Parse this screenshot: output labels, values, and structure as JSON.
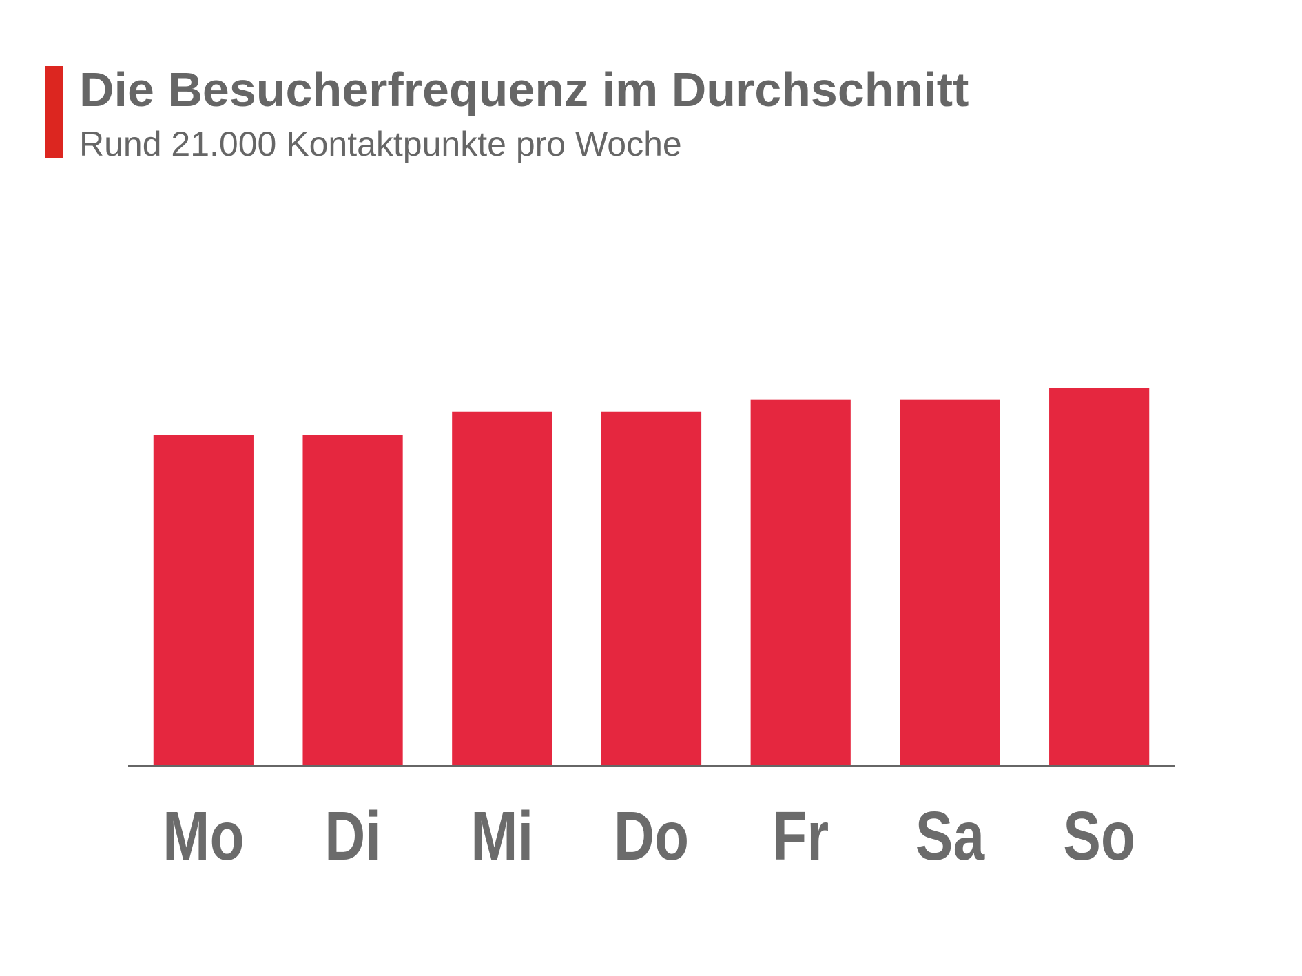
{
  "chart_data": {
    "type": "bar",
    "title": "Die Besucherfrequenz im Durchschnitt",
    "subtitle": "Rund 21.000 Kontaktpunkte pro Woche",
    "categories": [
      "Mo",
      "Di",
      "Mi",
      "Do",
      "Fr",
      "Sa",
      "So"
    ],
    "values": [
      2800,
      2800,
      3000,
      3000,
      3100,
      3100,
      3200
    ],
    "color": "#e5273f",
    "ylim": [
      0,
      4000
    ]
  }
}
